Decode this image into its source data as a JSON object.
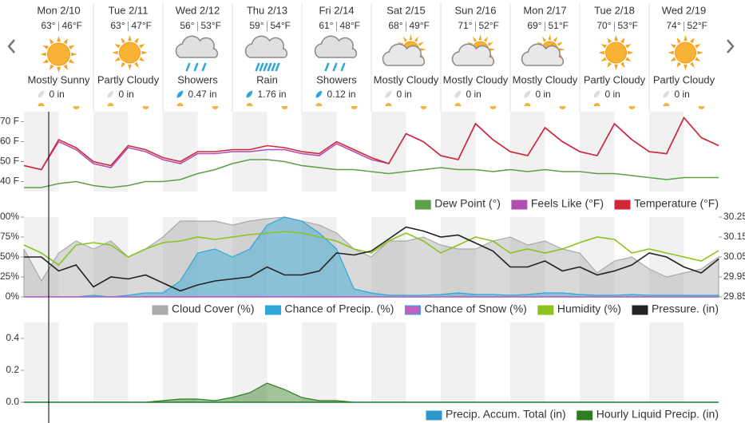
{
  "days": [
    {
      "day": "Mon 2/10",
      "high": "63°",
      "low": "46°F",
      "condition": "Mostly Sunny",
      "precip": "0 in"
    },
    {
      "day": "Tue 2/11",
      "high": "63°",
      "low": "47°F",
      "condition": "Partly Cloudy",
      "precip": "0 in"
    },
    {
      "day": "Wed 2/12",
      "high": "56°",
      "low": "53°F",
      "condition": "Showers",
      "precip": "0.47 in"
    },
    {
      "day": "Thu 2/13",
      "high": "59°",
      "low": "54°F",
      "condition": "Rain",
      "precip": "1.76 in"
    },
    {
      "day": "Fri 2/14",
      "high": "61°",
      "low": "48°F",
      "condition": "Showers",
      "precip": "0.12 in"
    },
    {
      "day": "Sat 2/15",
      "high": "68°",
      "low": "49°F",
      "condition": "Mostly Cloudy",
      "precip": "0 in"
    },
    {
      "day": "Sun 2/16",
      "high": "71°",
      "low": "52°F",
      "condition": "Mostly Cloudy",
      "precip": "0 in"
    },
    {
      "day": "Mon 2/17",
      "high": "69°",
      "low": "51°F",
      "condition": "Mostly Cloudy",
      "precip": "0 in"
    },
    {
      "day": "Tue 2/18",
      "high": "70°",
      "low": "53°F",
      "condition": "Partly Cloudy",
      "precip": "0 in"
    },
    {
      "day": "Wed 2/19",
      "high": "74°",
      "low": "52°F",
      "condition": "Partly Cloudy",
      "precip": "0 in"
    }
  ],
  "chart_data": [
    {
      "type": "line",
      "legend": "bottom-right",
      "ylim": [
        35,
        75
      ],
      "yticks": [
        {
          "value": 40,
          "label": "40 F"
        },
        {
          "value": 50,
          "label": "50 F"
        },
        {
          "value": 60,
          "label": "60 F"
        },
        {
          "value": 70,
          "label": "70 F"
        }
      ],
      "series": [
        {
          "name": "Dew Point (°)",
          "color": "#5ca04a",
          "style": "line",
          "values": [
            37,
            37,
            39,
            40,
            38,
            37,
            38,
            40,
            40,
            41,
            44,
            46,
            49,
            51,
            51,
            50,
            48,
            47,
            46,
            46,
            45,
            44,
            45,
            46,
            47,
            46,
            46,
            45,
            46,
            45,
            46,
            45,
            45,
            44,
            44,
            43,
            42,
            41,
            42,
            42,
            42
          ]
        },
        {
          "name": "Feels Like (°F)",
          "color": "#b050b0",
          "style": "line",
          "values": [
            48,
            46,
            60,
            56,
            49,
            47,
            57,
            55,
            51,
            49,
            54,
            54,
            55,
            55,
            56,
            56,
            54,
            53,
            59,
            55,
            51,
            49,
            64,
            60,
            53,
            51,
            69,
            61,
            55,
            53,
            67,
            60,
            55,
            53,
            69,
            61,
            55,
            54,
            72,
            62,
            58
          ]
        },
        {
          "name": "Temperature (°F)",
          "color": "#d0283a",
          "style": "line",
          "values": [
            48,
            46,
            61,
            57,
            50,
            48,
            58,
            56,
            52,
            50,
            55,
            55,
            56,
            56,
            58,
            57,
            55,
            54,
            60,
            56,
            52,
            49,
            64,
            60,
            53,
            51,
            69,
            61,
            55,
            53,
            67,
            60,
            55,
            53,
            69,
            61,
            55,
            54,
            72,
            62,
            58
          ]
        }
      ]
    },
    {
      "type": "line",
      "legend": "bottom-right",
      "ylim": [
        0,
        100
      ],
      "yticks": [
        {
          "value": 0,
          "label": "0%"
        },
        {
          "value": 25,
          "label": "25%"
        },
        {
          "value": 50,
          "label": "50%"
        },
        {
          "value": 75,
          "label": "75%"
        },
        {
          "value": 100,
          "label": "100%"
        }
      ],
      "y2lim": [
        29.85,
        30.25
      ],
      "y2ticks": [
        29.85,
        29.95,
        30.05,
        30.15,
        30.25
      ],
      "series": [
        {
          "name": "Cloud Cover (%)",
          "color": "#aaaaaa",
          "style": "area",
          "values": [
            60,
            20,
            55,
            70,
            60,
            70,
            50,
            60,
            75,
            95,
            95,
            95,
            90,
            95,
            98,
            100,
            95,
            90,
            80,
            60,
            50,
            70,
            70,
            75,
            65,
            60,
            60,
            70,
            75,
            65,
            70,
            60,
            55,
            30,
            45,
            50,
            35,
            25,
            30,
            35,
            50
          ]
        },
        {
          "name": "Chance of Precip. (%)",
          "color": "#2ea7d6",
          "style": "area",
          "values": [
            0,
            0,
            0,
            0,
            2,
            0,
            2,
            5,
            5,
            20,
            55,
            60,
            50,
            60,
            90,
            100,
            95,
            80,
            60,
            10,
            5,
            2,
            2,
            2,
            3,
            5,
            3,
            3,
            2,
            3,
            5,
            5,
            3,
            2,
            2,
            3,
            2,
            2,
            2,
            2,
            2
          ]
        },
        {
          "name": "Chance of Snow (%)",
          "color": "#c060c0",
          "style": "line",
          "values": [
            0,
            0,
            0,
            0,
            0,
            0,
            0,
            0,
            0,
            0,
            0,
            0,
            0,
            0,
            0,
            0,
            0,
            0,
            0,
            0,
            0,
            0,
            0,
            0,
            0,
            0,
            0,
            0,
            0,
            0,
            0,
            0,
            0,
            0,
            0,
            0,
            0,
            0,
            0,
            0,
            0
          ]
        },
        {
          "name": "Humidity (%)",
          "color": "#8dc21f",
          "style": "line",
          "values": [
            65,
            55,
            40,
            65,
            68,
            65,
            50,
            60,
            68,
            70,
            75,
            72,
            75,
            78,
            80,
            82,
            80,
            75,
            70,
            60,
            55,
            70,
            80,
            70,
            55,
            65,
            75,
            70,
            55,
            60,
            55,
            60,
            68,
            75,
            72,
            55,
            60,
            55,
            50,
            45,
            58
          ]
        },
        {
          "name": "Pressure. (in)",
          "color": "#222222",
          "style": "line",
          "axis": "y2",
          "values": [
            30.05,
            30.05,
            29.98,
            30.01,
            29.9,
            29.95,
            29.94,
            29.96,
            29.92,
            29.88,
            29.91,
            29.93,
            29.94,
            29.95,
            30.0,
            29.96,
            29.96,
            29.98,
            30.07,
            30.06,
            30.08,
            30.14,
            30.2,
            30.18,
            30.15,
            30.16,
            30.12,
            30.08,
            30.0,
            30.0,
            30.03,
            29.98,
            30.0,
            29.96,
            29.98,
            30.01,
            30.07,
            30.05,
            30.0,
            29.97,
            30.04
          ]
        }
      ]
    },
    {
      "type": "line",
      "legend": "bottom-right",
      "ylim": [
        0,
        0.5
      ],
      "yticks": [
        {
          "value": 0,
          "label": "0.0"
        },
        0.2,
        0.4
      ],
      "series": [
        {
          "name": "Precip. Accum. Total (in)",
          "color": "#2f96c8",
          "style": "line",
          "values": [
            0,
            0,
            0,
            0,
            0,
            0,
            0,
            0,
            0,
            0,
            0,
            0,
            0,
            0,
            0,
            0,
            0,
            0,
            0,
            0,
            0,
            0,
            0,
            0,
            0,
            0,
            0,
            0,
            0,
            0,
            0,
            0,
            0,
            0,
            0,
            0,
            0,
            0,
            0,
            0,
            0
          ]
        },
        {
          "name": "Hourly Liquid Precip. (in)",
          "color": "#2e7d1e",
          "style": "area",
          "values": [
            0,
            0,
            0,
            0,
            0,
            0,
            0,
            0,
            0.01,
            0.02,
            0.02,
            0.01,
            0.03,
            0.06,
            0.12,
            0.08,
            0.03,
            0.01,
            0.01,
            0,
            0,
            0,
            0,
            0,
            0,
            0,
            0,
            0,
            0,
            0,
            0,
            0,
            0,
            0,
            0,
            0,
            0,
            0,
            0,
            0,
            0
          ]
        }
      ]
    }
  ]
}
